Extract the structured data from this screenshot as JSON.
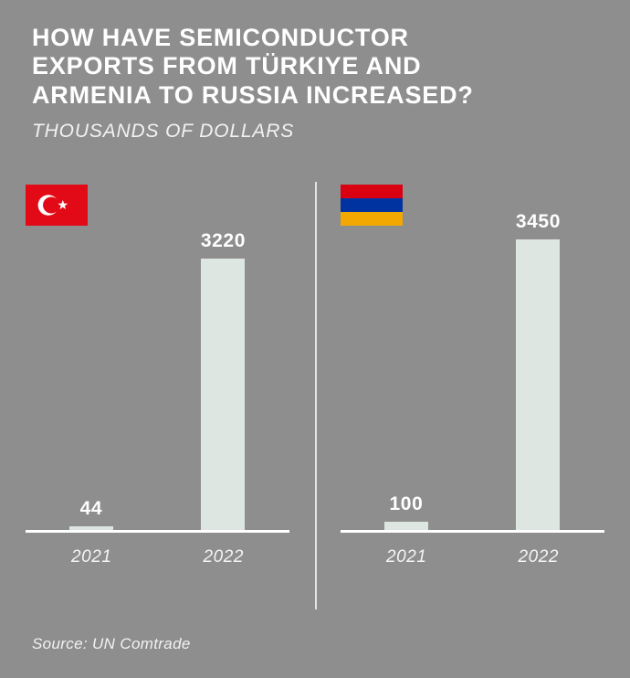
{
  "header": {
    "title_lines": [
      "HOW HAVE SEMICONDUCTOR",
      "EXPORTS FROM TÜRKIYE AND",
      "ARMENIA TO RUSSIA INCREASED?"
    ],
    "subtitle": "THOUSANDS OF DOLLARS"
  },
  "footer": {
    "source": "Source: UN Comtrade"
  },
  "colors": {
    "background": "#8e8e8e",
    "bar": "#dde6e1",
    "text": "#ffffff",
    "turkey_flag_red": "#e30a17",
    "armenia_flag_red": "#d90012",
    "armenia_flag_blue": "#0033a0",
    "armenia_flag_orange": "#f2a800"
  },
  "chart_data": [
    {
      "type": "bar",
      "country": "Türkiye",
      "flag_icon": "turkey-flag",
      "categories": [
        "2021",
        "2022"
      ],
      "values": [
        44,
        3220
      ],
      "ylim": [
        0,
        3450
      ],
      "unit": "thousands of dollars",
      "legend": "none",
      "grid": false
    },
    {
      "type": "bar",
      "country": "Armenia",
      "flag_icon": "armenia-flag",
      "categories": [
        "2021",
        "2022"
      ],
      "values": [
        100,
        3450
      ],
      "ylim": [
        0,
        3450
      ],
      "unit": "thousands of dollars",
      "legend": "none",
      "grid": false
    }
  ]
}
